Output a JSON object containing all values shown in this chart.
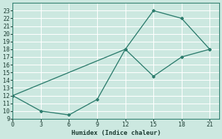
{
  "xlabel": "Humidex (Indice chaleur)",
  "xlim": [
    0,
    22
  ],
  "ylim": [
    9,
    24
  ],
  "xticks": [
    0,
    3,
    6,
    9,
    12,
    15,
    18,
    21
  ],
  "yticks": [
    9,
    10,
    11,
    12,
    13,
    14,
    15,
    16,
    17,
    18,
    19,
    20,
    21,
    22,
    23
  ],
  "line1_x": [
    0,
    3,
    6,
    9,
    12,
    15,
    18,
    21
  ],
  "line1_y": [
    12,
    10,
    9.5,
    11.5,
    18,
    23,
    22,
    18
  ],
  "line2_x": [
    0,
    12,
    15,
    18,
    21
  ],
  "line2_y": [
    12,
    18,
    14.5,
    17,
    18
  ],
  "line_color": "#2e7d6e",
  "bg_color": "#cce8e0",
  "grid_color": "#ffffff",
  "label_fontsize": 6.5,
  "tick_fontsize": 6
}
